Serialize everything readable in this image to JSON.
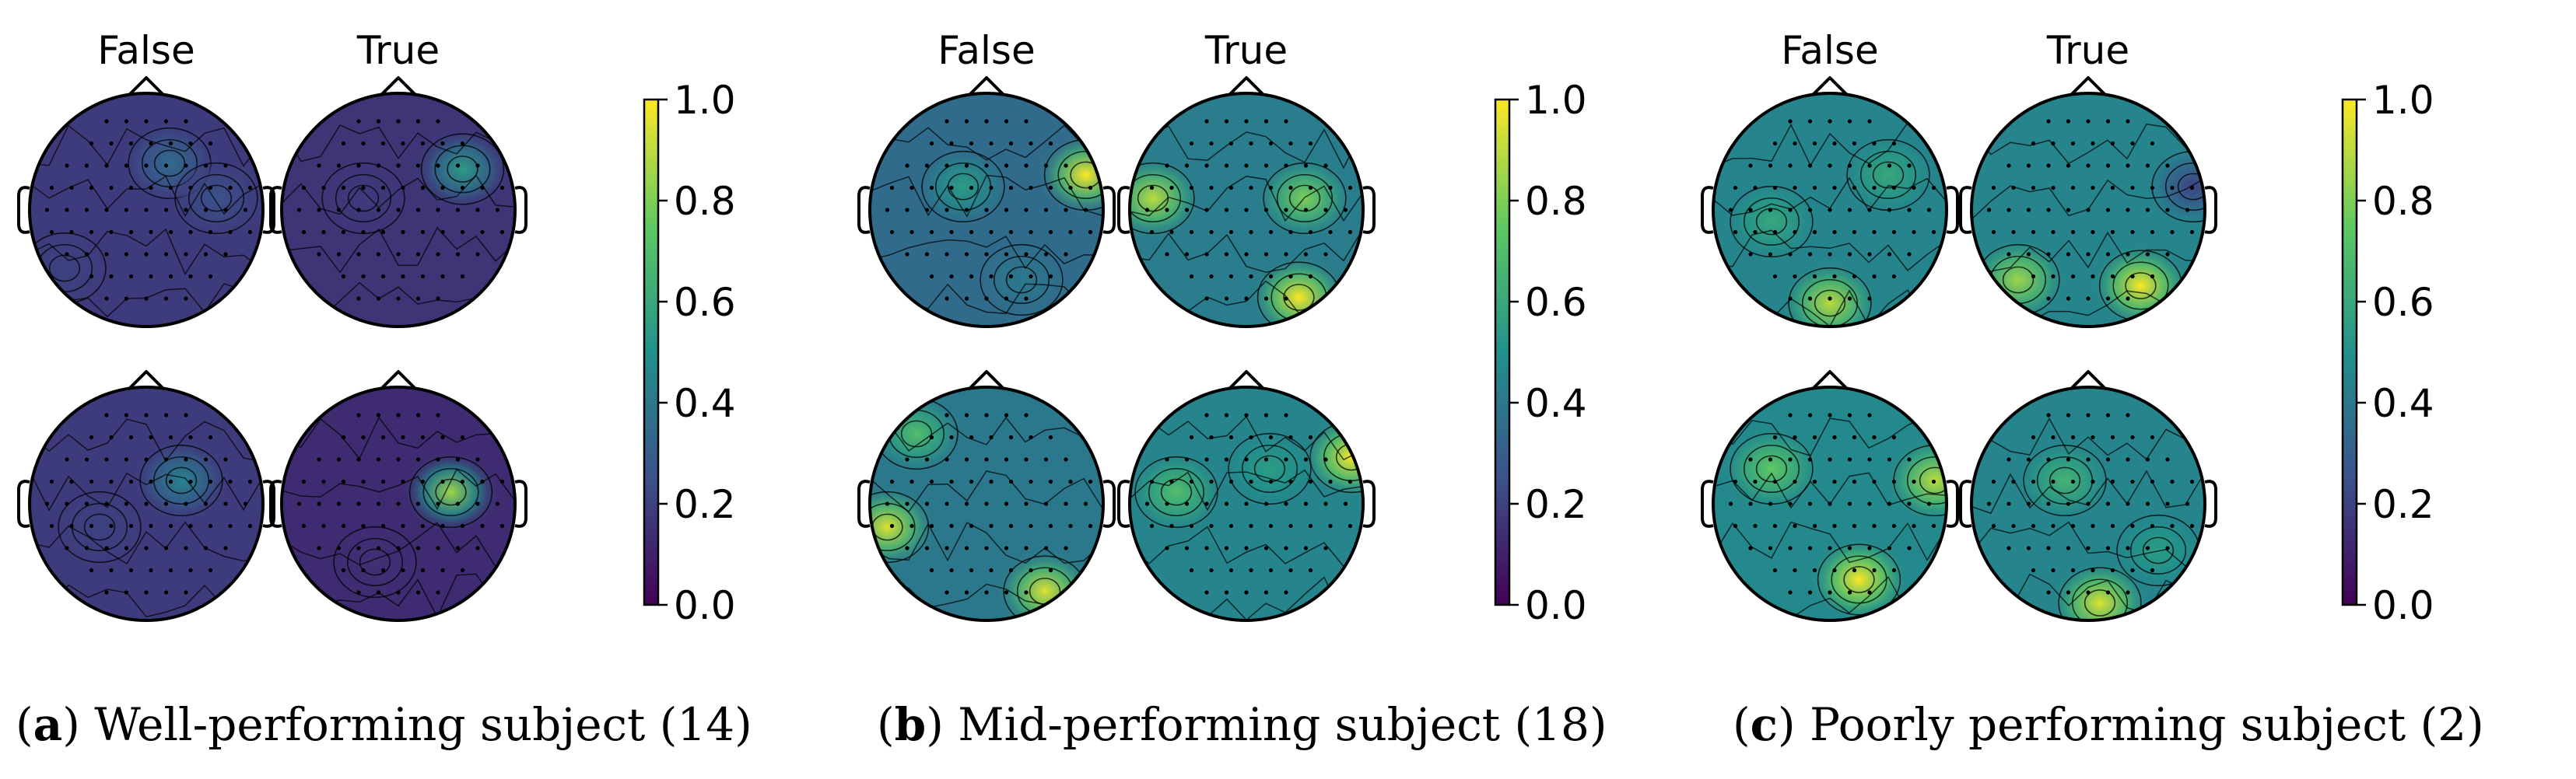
{
  "figure": {
    "panels": [
      {
        "id": "a",
        "caption_letter": "a",
        "caption_text": " Well-performing subject (14)",
        "column_titles": [
          "False",
          "True"
        ],
        "intensity": [
          0.18,
          0.16,
          0.18,
          0.13
        ],
        "hotspots": [
          [
            {
              "u": 0.2,
              "v": -0.4,
              "a": 0.35
            },
            {
              "u": 0.6,
              "v": -0.1,
              "a": 0.25
            },
            {
              "u": -0.7,
              "v": 0.5,
              "a": 0.2
            }
          ],
          [
            {
              "u": 0.55,
              "v": -0.35,
              "a": 0.55
            },
            {
              "u": -0.3,
              "v": -0.1,
              "a": 0.18
            }
          ],
          [
            {
              "u": 0.3,
              "v": -0.2,
              "a": 0.45
            },
            {
              "u": -0.4,
              "v": 0.2,
              "a": 0.2
            }
          ],
          [
            {
              "u": 0.45,
              "v": -0.1,
              "a": 0.85
            },
            {
              "u": -0.2,
              "v": 0.5,
              "a": 0.15
            }
          ]
        ]
      },
      {
        "id": "b",
        "caption_letter": "b",
        "caption_text": " Mid-performing subject (18)",
        "column_titles": [
          "False",
          "True"
        ],
        "intensity": [
          0.35,
          0.42,
          0.4,
          0.45
        ],
        "hotspots": [
          [
            {
              "u": 0.85,
              "v": -0.3,
              "a": 1.0
            },
            {
              "u": -0.2,
              "v": -0.2,
              "a": 0.55
            },
            {
              "u": 0.3,
              "v": 0.6,
              "a": 0.4
            }
          ],
          [
            {
              "u": -0.8,
              "v": -0.1,
              "a": 0.9
            },
            {
              "u": 0.45,
              "v": 0.75,
              "a": 1.0
            },
            {
              "u": 0.5,
              "v": -0.1,
              "a": 0.8
            }
          ],
          [
            {
              "u": 0.5,
              "v": 0.75,
              "a": 0.95
            },
            {
              "u": -0.85,
              "v": 0.2,
              "a": 0.95
            },
            {
              "u": -0.6,
              "v": -0.6,
              "a": 0.7
            }
          ],
          [
            {
              "u": 0.9,
              "v": -0.4,
              "a": 1.0
            },
            {
              "u": -0.6,
              "v": -0.1,
              "a": 0.7
            },
            {
              "u": 0.2,
              "v": -0.3,
              "a": 0.55
            }
          ]
        ]
      },
      {
        "id": "c",
        "caption_letter": "c",
        "caption_text": " Poorly performing subject (2)",
        "column_titles": [
          "False",
          "True"
        ],
        "intensity": [
          0.45,
          0.45,
          0.47,
          0.45
        ],
        "hotspots": [
          [
            {
              "u": 0.0,
              "v": 0.8,
              "a": 0.9
            },
            {
              "u": 0.5,
              "v": -0.3,
              "a": 0.6
            },
            {
              "u": -0.5,
              "v": 0.1,
              "a": 0.6
            }
          ],
          [
            {
              "u": 0.45,
              "v": 0.65,
              "a": 1.0
            },
            {
              "u": -0.6,
              "v": 0.6,
              "a": 0.85
            },
            {
              "u": 0.9,
              "v": -0.2,
              "a": 0.2
            }
          ],
          [
            {
              "u": 0.25,
              "v": 0.65,
              "a": 1.0
            },
            {
              "u": 0.9,
              "v": -0.2,
              "a": 0.9
            },
            {
              "u": -0.5,
              "v": -0.3,
              "a": 0.75
            }
          ],
          [
            {
              "u": 0.1,
              "v": 0.85,
              "a": 0.95
            },
            {
              "u": -0.2,
              "v": -0.2,
              "a": 0.65
            },
            {
              "u": 0.6,
              "v": 0.4,
              "a": 0.55
            }
          ]
        ]
      }
    ],
    "colorbar": {
      "ticks": [
        "0.0",
        "0.2",
        "0.4",
        "0.6",
        "0.8",
        "1.0"
      ],
      "range": [
        0,
        1
      ],
      "colormap": "viridis",
      "colors": [
        "#440154",
        "#3b528b",
        "#21918c",
        "#5ec962",
        "#fde725"
      ]
    }
  },
  "chart_data": {
    "type": "heatmap",
    "description_type": "EEG scalp topographic maps (topomaps)",
    "value_range": [
      0,
      1
    ],
    "colorbar_ticks": [
      0.0,
      0.2,
      0.4,
      0.6,
      0.8,
      1.0
    ],
    "panels": [
      {
        "label": "(a) Well-performing subject (14)",
        "columns": [
          "False",
          "True"
        ],
        "rows": 2
      },
      {
        "label": "(b) Mid-performing subject (18)",
        "columns": [
          "False",
          "True"
        ],
        "rows": 2
      },
      {
        "label": "(c) Poorly performing subject (2)",
        "columns": [
          "False",
          "True"
        ],
        "rows": 2
      }
    ]
  }
}
